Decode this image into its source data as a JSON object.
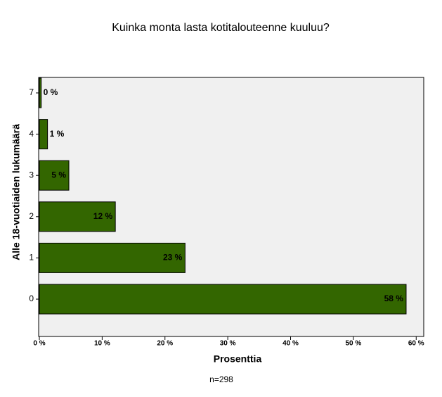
{
  "chart_data": {
    "type": "barh",
    "title": "Kuinka monta lasta kotitalouteenne kuuluu?",
    "x_label": "Prosenttia",
    "y_label": "Alle 18-vuotiaiden lukumäärä",
    "annotation": "n=298",
    "categories": [
      "7",
      "4",
      "3",
      "2",
      "1",
      "0"
    ],
    "values": [
      0.3,
      1.3,
      4.7,
      12.1,
      23.2,
      58.4
    ],
    "value_labels": [
      "0 %",
      "1 %",
      "5 %",
      "12 %",
      "23 %",
      "58 %"
    ],
    "color": "#336600",
    "xlim": [
      0,
      61.2
    ],
    "xticks": [
      {
        "value": 0,
        "label": "0 %"
      },
      {
        "value": 10,
        "label": "10 %"
      },
      {
        "value": 20,
        "label": "20 %"
      },
      {
        "value": 30,
        "label": "30 %"
      },
      {
        "value": 40,
        "label": "40 %"
      },
      {
        "value": 50,
        "label": "50 %"
      },
      {
        "value": 60,
        "label": "60 %"
      }
    ]
  }
}
